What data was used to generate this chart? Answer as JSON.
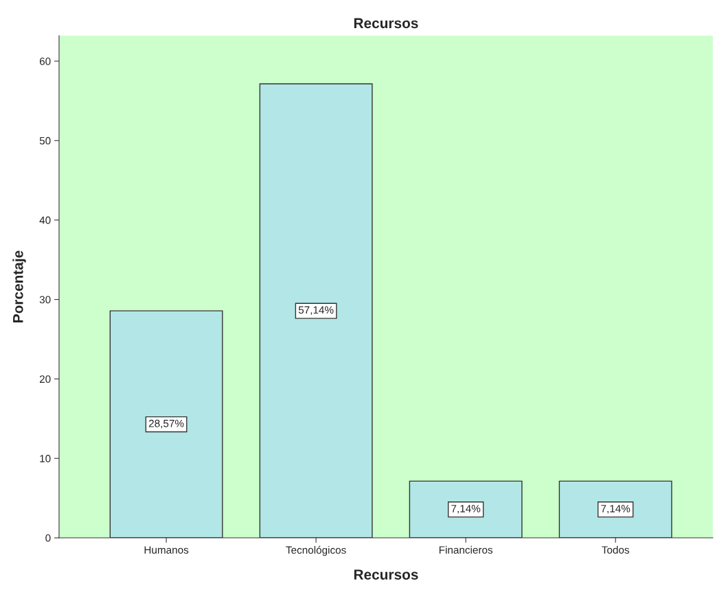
{
  "chart_data": {
    "type": "bar",
    "title": "Recursos",
    "xlabel": "Recursos",
    "ylabel": "Porcentaje",
    "categories": [
      "Humanos",
      "Tecnológicos",
      "Financieros",
      "Todos"
    ],
    "values": [
      28.57,
      57.14,
      7.14,
      7.14
    ],
    "value_labels": [
      "28,57%",
      "57,14%",
      "7,14%",
      "7,14%"
    ],
    "color": "#b3e6e6",
    "ylim": [
      0,
      63.2
    ],
    "yticks": [
      0,
      10,
      20,
      30,
      40,
      50,
      60
    ],
    "grid": false,
    "legend": false
  }
}
